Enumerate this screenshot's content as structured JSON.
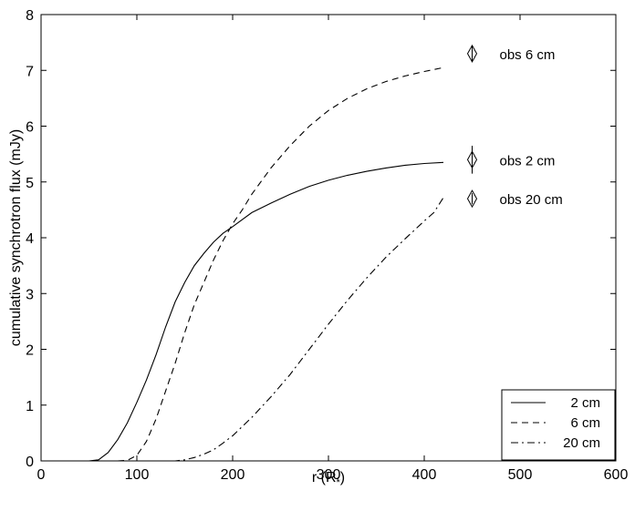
{
  "chart_data": {
    "type": "line",
    "title": "",
    "xlabel": "r (R",
    "xlabel_subscript": "*",
    "xlabel_suffix": ")",
    "ylabel": "cumulative synchrotron flux (mJy)",
    "xlim": [
      0,
      600
    ],
    "ylim": [
      0,
      8
    ],
    "xticks": [
      0,
      100,
      200,
      300,
      400,
      500,
      600
    ],
    "yticks": [
      0,
      1,
      2,
      3,
      4,
      5,
      6,
      7,
      8
    ],
    "grid": false,
    "legend_position": "bottom-right",
    "series": [
      {
        "name": "2 cm",
        "style": "solid",
        "x": [
          0,
          50,
          60,
          70,
          80,
          90,
          100,
          110,
          120,
          130,
          140,
          150,
          160,
          170,
          180,
          190,
          200,
          220,
          240,
          260,
          280,
          300,
          320,
          340,
          360,
          380,
          400,
          420
        ],
        "y": [
          0,
          0,
          0.02,
          0.15,
          0.38,
          0.68,
          1.05,
          1.45,
          1.9,
          2.4,
          2.85,
          3.2,
          3.5,
          3.72,
          3.92,
          4.08,
          4.2,
          4.45,
          4.62,
          4.78,
          4.92,
          5.03,
          5.12,
          5.19,
          5.25,
          5.3,
          5.33,
          5.35
        ]
      },
      {
        "name": "6 cm",
        "style": "dashed",
        "x": [
          0,
          80,
          90,
          100,
          110,
          120,
          130,
          140,
          150,
          160,
          170,
          180,
          190,
          200,
          210,
          220,
          240,
          260,
          280,
          300,
          320,
          340,
          360,
          380,
          400,
          420
        ],
        "y": [
          0,
          0,
          0.01,
          0.1,
          0.35,
          0.75,
          1.25,
          1.75,
          2.3,
          2.8,
          3.2,
          3.6,
          3.95,
          4.25,
          4.5,
          4.78,
          5.25,
          5.65,
          6.0,
          6.28,
          6.5,
          6.67,
          6.8,
          6.9,
          6.98,
          7.05
        ]
      },
      {
        "name": "20 cm",
        "style": "dashdot",
        "x": [
          0,
          140,
          150,
          160,
          170,
          180,
          190,
          200,
          220,
          240,
          260,
          280,
          300,
          320,
          340,
          360,
          380,
          400,
          410,
          420
        ],
        "y": [
          0,
          0,
          0.02,
          0.06,
          0.12,
          0.2,
          0.32,
          0.45,
          0.78,
          1.15,
          1.55,
          2.0,
          2.45,
          2.88,
          3.28,
          3.65,
          3.98,
          4.3,
          4.45,
          4.72
        ]
      }
    ],
    "observations": [
      {
        "label": "obs 6 cm",
        "x": 450,
        "y": 7.3,
        "yerr_low": 0.15,
        "yerr_high": 0.15
      },
      {
        "label": "obs 2 cm",
        "x": 450,
        "y": 5.4,
        "yerr_low": 0.25,
        "yerr_high": 0.25
      },
      {
        "label": "obs 20 cm",
        "x": 450,
        "y": 4.7,
        "yerr_low": 0.1,
        "yerr_high": 0.1
      }
    ]
  }
}
